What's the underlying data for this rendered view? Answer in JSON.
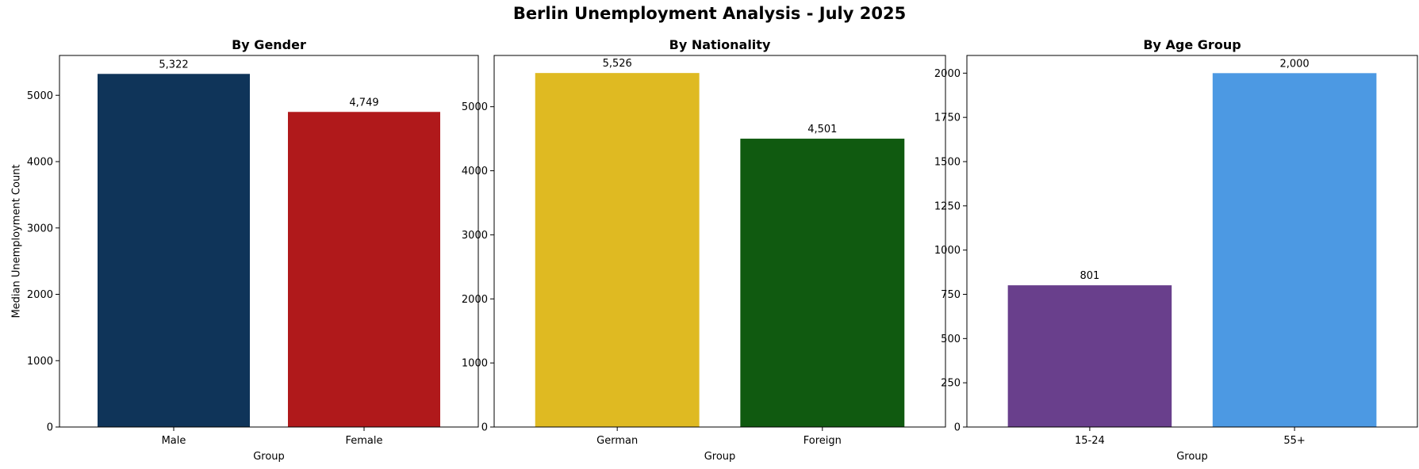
{
  "suptitle": "Berlin Unemployment Analysis - July 2025",
  "chart_data": [
    {
      "type": "bar",
      "title": "By Gender",
      "xlabel": "Group",
      "ylabel": "Median Unemployment Count",
      "categories": [
        "Male",
        "Female"
      ],
      "values": [
        5322,
        4749
      ],
      "value_labels": [
        "5,322",
        "4,749"
      ],
      "colors": [
        "#0f3459",
        "#b0191b"
      ],
      "ylim": [
        0,
        5600
      ],
      "yticks": [
        0,
        1000,
        2000,
        3000,
        4000,
        5000
      ],
      "grid": false
    },
    {
      "type": "bar",
      "title": "By Nationality",
      "xlabel": "Group",
      "ylabel": "",
      "categories": [
        "German",
        "Foreign"
      ],
      "values": [
        5526,
        4501
      ],
      "value_labels": [
        "5,526",
        "4,501"
      ],
      "colors": [
        "#dfba22",
        "#105a10"
      ],
      "ylim": [
        0,
        5800
      ],
      "yticks": [
        0,
        1000,
        2000,
        3000,
        4000,
        5000
      ],
      "grid": false
    },
    {
      "type": "bar",
      "title": "By Age Group",
      "xlabel": "Group",
      "ylabel": "",
      "categories": [
        "15-24",
        "55+"
      ],
      "values": [
        801,
        2000
      ],
      "value_labels": [
        "801",
        "2,000"
      ],
      "colors": [
        "#693f8c",
        "#4c99e3"
      ],
      "ylim": [
        0,
        2100
      ],
      "yticks": [
        0,
        250,
        500,
        750,
        1000,
        1250,
        1500,
        1750,
        2000
      ],
      "grid": false
    }
  ]
}
